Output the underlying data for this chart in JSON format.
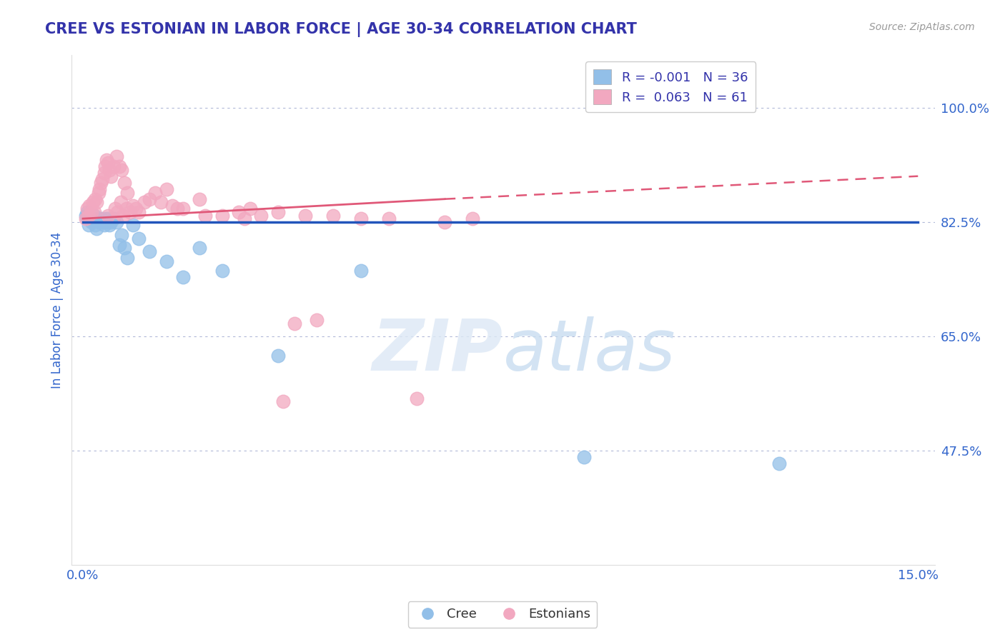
{
  "title": "CREE VS ESTONIAN IN LABOR FORCE | AGE 30-34 CORRELATION CHART",
  "ylabel": "In Labor Force | Age 30-34",
  "source": "Source: ZipAtlas.com",
  "xlim": [
    0.0,
    15.0
  ],
  "ylim": [
    30.0,
    108.0
  ],
  "yticks": [
    47.5,
    65.0,
    82.5,
    100.0
  ],
  "xtick_labels": [
    "0.0%",
    "15.0%"
  ],
  "ytick_labels": [
    "47.5%",
    "65.0%",
    "82.5%",
    "100.0%"
  ],
  "legend_blue_label_r": "-0.001",
  "legend_blue_label_n": "36",
  "legend_pink_label_r": "0.063",
  "legend_pink_label_n": "61",
  "cree_color": "#92bfe8",
  "estonian_color": "#f2a8c0",
  "blue_line_color": "#2255bb",
  "pink_line_color": "#e05878",
  "grid_color": "#b0b8d8",
  "title_color": "#3333aa",
  "axis_label_color": "#3366cc",
  "tick_color": "#3366cc",
  "cree_x": [
    0.05,
    0.08,
    0.1,
    0.12,
    0.15,
    0.18,
    0.2,
    0.22,
    0.25,
    0.28,
    0.3,
    0.32,
    0.35,
    0.38,
    0.4,
    0.42,
    0.45,
    0.48,
    0.5,
    0.55,
    0.6,
    0.65,
    0.7,
    0.75,
    0.8,
    0.9,
    1.0,
    1.2,
    1.5,
    1.8,
    2.1,
    2.5,
    3.5,
    5.0,
    9.0,
    12.5
  ],
  "cree_y": [
    83.5,
    84.0,
    82.0,
    83.0,
    82.5,
    83.0,
    83.5,
    82.0,
    81.5,
    83.0,
    82.5,
    83.0,
    82.5,
    82.0,
    83.0,
    82.5,
    83.0,
    82.0,
    82.5,
    83.0,
    82.5,
    79.0,
    80.5,
    78.5,
    77.0,
    82.0,
    80.0,
    78.0,
    76.5,
    74.0,
    78.5,
    75.0,
    62.0,
    75.0,
    46.5,
    45.5
  ],
  "estonian_x": [
    0.05,
    0.08,
    0.1,
    0.12,
    0.15,
    0.18,
    0.2,
    0.22,
    0.25,
    0.28,
    0.3,
    0.32,
    0.35,
    0.38,
    0.4,
    0.42,
    0.45,
    0.48,
    0.5,
    0.55,
    0.6,
    0.65,
    0.7,
    0.75,
    0.8,
    0.9,
    1.0,
    1.2,
    1.5,
    1.8,
    2.1,
    2.5,
    3.0,
    3.5,
    4.0,
    5.0,
    6.5,
    7.0,
    1.3,
    2.8,
    3.8,
    1.6,
    0.95,
    5.5,
    4.5,
    0.85,
    0.78,
    0.68,
    0.58,
    1.1,
    1.4,
    2.2,
    2.9,
    0.45,
    1.7,
    6.0,
    0.62,
    0.72,
    3.2,
    4.2,
    3.6
  ],
  "estonian_y": [
    83.0,
    84.5,
    83.5,
    85.0,
    84.0,
    85.5,
    84.0,
    86.0,
    85.5,
    87.0,
    87.5,
    88.5,
    89.0,
    90.0,
    91.0,
    92.0,
    91.5,
    90.5,
    89.5,
    91.0,
    92.5,
    91.0,
    90.5,
    88.5,
    87.0,
    85.0,
    84.0,
    86.0,
    87.5,
    84.5,
    86.0,
    83.5,
    84.5,
    84.0,
    83.5,
    83.0,
    82.5,
    83.0,
    87.0,
    84.0,
    67.0,
    85.0,
    84.5,
    83.0,
    83.5,
    84.0,
    84.5,
    85.5,
    84.5,
    85.5,
    85.5,
    83.5,
    83.0,
    83.5,
    84.5,
    55.5,
    84.0,
    83.5,
    83.5,
    67.5,
    55.0
  ],
  "blue_trend_y0": 82.5,
  "blue_trend_y1": 82.5,
  "pink_solid_x0": 0.0,
  "pink_solid_x1": 6.5,
  "pink_solid_y0": 83.0,
  "pink_solid_y1": 86.0,
  "pink_dashed_x0": 6.5,
  "pink_dashed_x1": 15.0,
  "pink_dashed_y0": 86.0,
  "pink_dashed_y1": 89.5
}
